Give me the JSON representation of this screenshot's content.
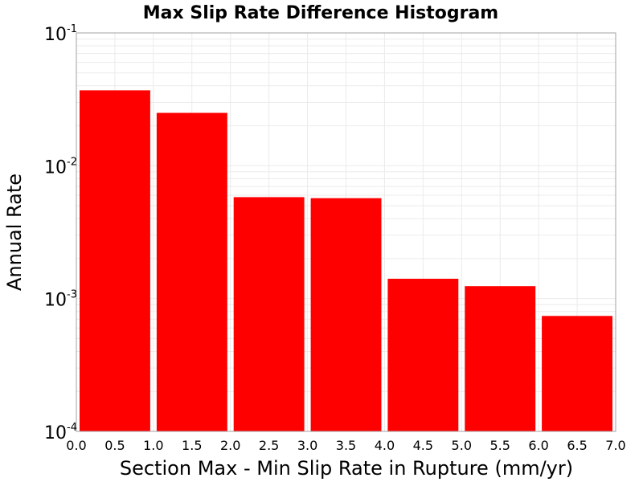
{
  "chart_data": {
    "type": "bar",
    "title": "Max Slip Rate Difference Histogram",
    "xlabel": "Section Max - Min Slip Rate in Rupture (mm/yr)",
    "ylabel": "Annual Rate",
    "x_scale": "linear",
    "y_scale": "log",
    "xlim": [
      0.0,
      7.0
    ],
    "ylim": [
      0.0001,
      0.1
    ],
    "bin_width": 1.0,
    "bins": [
      {
        "x0": 0.0,
        "x1": 1.0,
        "value": 0.037
      },
      {
        "x0": 1.0,
        "x1": 2.0,
        "value": 0.025
      },
      {
        "x0": 2.0,
        "x1": 3.0,
        "value": 0.0058
      },
      {
        "x0": 3.0,
        "x1": 4.0,
        "value": 0.0057
      },
      {
        "x0": 4.0,
        "x1": 5.0,
        "value": 0.00141
      },
      {
        "x0": 5.0,
        "x1": 6.0,
        "value": 0.00124
      },
      {
        "x0": 6.0,
        "x1": 7.0,
        "value": 0.00074
      }
    ],
    "x_ticks": [
      "0.0",
      "0.5",
      "1.0",
      "1.5",
      "2.0",
      "2.5",
      "3.0",
      "3.5",
      "4.0",
      "4.5",
      "5.0",
      "5.5",
      "6.0",
      "6.5",
      "7.0"
    ],
    "y_ticks": [
      {
        "base": "10",
        "exp": "-4",
        "value": 0.0001
      },
      {
        "base": "10",
        "exp": "-3",
        "value": 0.001
      },
      {
        "base": "10",
        "exp": "-2",
        "value": 0.01
      },
      {
        "base": "10",
        "exp": "-1",
        "value": 0.1
      }
    ],
    "grid": true,
    "legend": "none",
    "colors": {
      "bar": "#ff0000",
      "grid": "#ebebeb",
      "frame": "#a0a0a0",
      "background": "#ffffff"
    }
  }
}
